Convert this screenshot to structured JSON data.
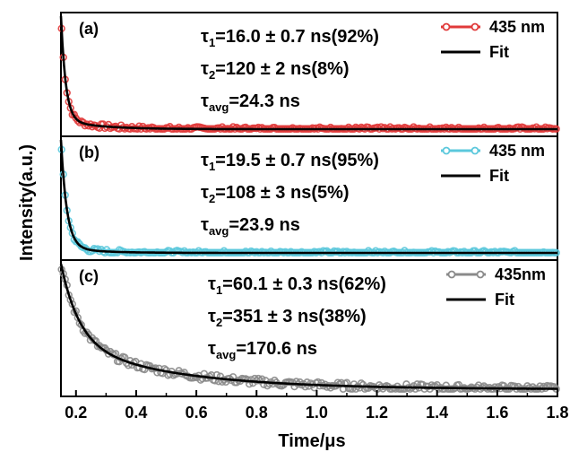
{
  "figure": {
    "xlabel": "Time/μs",
    "ylabel": "Intensity(a.u.)",
    "x_ticks": [
      "0.2",
      "0.4",
      "0.6",
      "0.8",
      "1.0",
      "1.2",
      "1.4",
      "1.6",
      "1.8"
    ]
  },
  "chart_data": [
    {
      "type": "scatter",
      "panel_label": "(a)",
      "x_range": [
        0.15,
        1.8
      ],
      "colors": {
        "data": "#e03a3a",
        "fit": "#000000"
      },
      "legend": [
        {
          "label": "435 nm",
          "kind": "data-marker-line"
        },
        {
          "label": "Fit",
          "kind": "line"
        }
      ],
      "annotations": [
        {
          "sym": "τ",
          "sub": "1",
          "rest": "=16.0 ± 0.7 ns(92%)"
        },
        {
          "sym": "τ",
          "sub": "2",
          "rest": "=120 ± 2 ns(8%)"
        },
        {
          "sym": "τ",
          "sub": "avg",
          "rest": "=24.3 ns"
        }
      ],
      "decay": {
        "tau1_ns": 16.0,
        "a1": 0.92,
        "tau2_ns": 120,
        "a2": 0.08
      },
      "series": [
        {
          "name": "435 nm",
          "x": [
            0.15,
            0.2,
            0.25,
            0.3,
            0.4,
            0.5,
            0.6,
            0.8,
            1.0,
            1.2,
            1.4,
            1.6,
            1.8
          ],
          "y": [
            1.0,
            0.45,
            0.26,
            0.17,
            0.08,
            0.045,
            0.03,
            0.018,
            0.012,
            0.008,
            0.005,
            0.003,
            0.002
          ]
        },
        {
          "name": "Fit",
          "x": [
            0.15,
            0.2,
            0.25,
            0.3,
            0.4,
            0.5,
            0.6,
            0.8,
            1.0,
            1.2,
            1.4,
            1.6,
            1.8
          ],
          "y": [
            1.0,
            0.44,
            0.25,
            0.16,
            0.078,
            0.043,
            0.028,
            0.017,
            0.011,
            0.007,
            0.004,
            0.003,
            0.002
          ]
        }
      ]
    },
    {
      "type": "scatter",
      "panel_label": "(b)",
      "x_range": [
        0.15,
        1.8
      ],
      "colors": {
        "data": "#5bc8dc",
        "fit": "#000000"
      },
      "legend": [
        {
          "label": "435 nm",
          "kind": "data-marker-line"
        },
        {
          "label": "Fit",
          "kind": "line"
        }
      ],
      "annotations": [
        {
          "sym": "τ",
          "sub": "1",
          "rest": "=19.5 ± 0.7 ns(95%)"
        },
        {
          "sym": "τ",
          "sub": "2",
          "rest": "=108 ± 3 ns(5%)"
        },
        {
          "sym": "τ",
          "sub": "avg",
          "rest": "=23.9 ns"
        }
      ],
      "decay": {
        "tau1_ns": 19.5,
        "a1": 0.95,
        "tau2_ns": 108,
        "a2": 0.05
      },
      "series": [
        {
          "name": "435 nm",
          "x": [
            0.15,
            0.2,
            0.25,
            0.3,
            0.4,
            0.5,
            0.6,
            0.8,
            1.0,
            1.2,
            1.4,
            1.6,
            1.8
          ],
          "y": [
            1.0,
            0.5,
            0.3,
            0.18,
            0.09,
            0.06,
            0.045,
            0.035,
            0.03,
            0.03,
            0.028,
            0.028,
            0.027
          ]
        },
        {
          "name": "Fit",
          "x": [
            0.15,
            0.2,
            0.25,
            0.3,
            0.4,
            0.5,
            0.6,
            0.8,
            1.0,
            1.2,
            1.4,
            1.6,
            1.8
          ],
          "y": [
            1.0,
            0.49,
            0.27,
            0.15,
            0.06,
            0.03,
            0.015,
            0.01,
            0.007,
            0.005,
            0.004,
            0.003,
            0.002
          ]
        }
      ]
    },
    {
      "type": "scatter",
      "panel_label": "(c)",
      "x_range": [
        0.15,
        1.8
      ],
      "colors": {
        "data": "#8a8a8a",
        "fit": "#000000"
      },
      "legend": [
        {
          "label": "435nm",
          "kind": "data-marker-line"
        },
        {
          "label": "Fit",
          "kind": "line"
        }
      ],
      "annotations": [
        {
          "sym": "τ",
          "sub": "1",
          "rest": "=60.1 ± 0.3 ns(62%)"
        },
        {
          "sym": "τ",
          "sub": "2",
          "rest": "=351 ± 3 ns(38%)"
        },
        {
          "sym": "τ",
          "sub": "avg",
          "rest": "=170.6 ns"
        }
      ],
      "decay": {
        "tau1_ns": 60.1,
        "a1": 0.62,
        "tau2_ns": 351,
        "a2": 0.38
      },
      "series": [
        {
          "name": "435nm",
          "x": [
            0.15,
            0.2,
            0.3,
            0.4,
            0.5,
            0.6,
            0.8,
            1.0,
            1.2,
            1.4,
            1.6,
            1.8
          ],
          "y": [
            1.0,
            0.78,
            0.5,
            0.36,
            0.27,
            0.21,
            0.14,
            0.1,
            0.07,
            0.05,
            0.04,
            0.03
          ]
        },
        {
          "name": "Fit",
          "x": [
            0.15,
            0.2,
            0.3,
            0.4,
            0.5,
            0.6,
            0.8,
            1.0,
            1.2,
            1.4,
            1.6,
            1.8
          ],
          "y": [
            1.0,
            0.76,
            0.48,
            0.34,
            0.26,
            0.2,
            0.13,
            0.09,
            0.06,
            0.045,
            0.035,
            0.025
          ]
        }
      ]
    }
  ]
}
